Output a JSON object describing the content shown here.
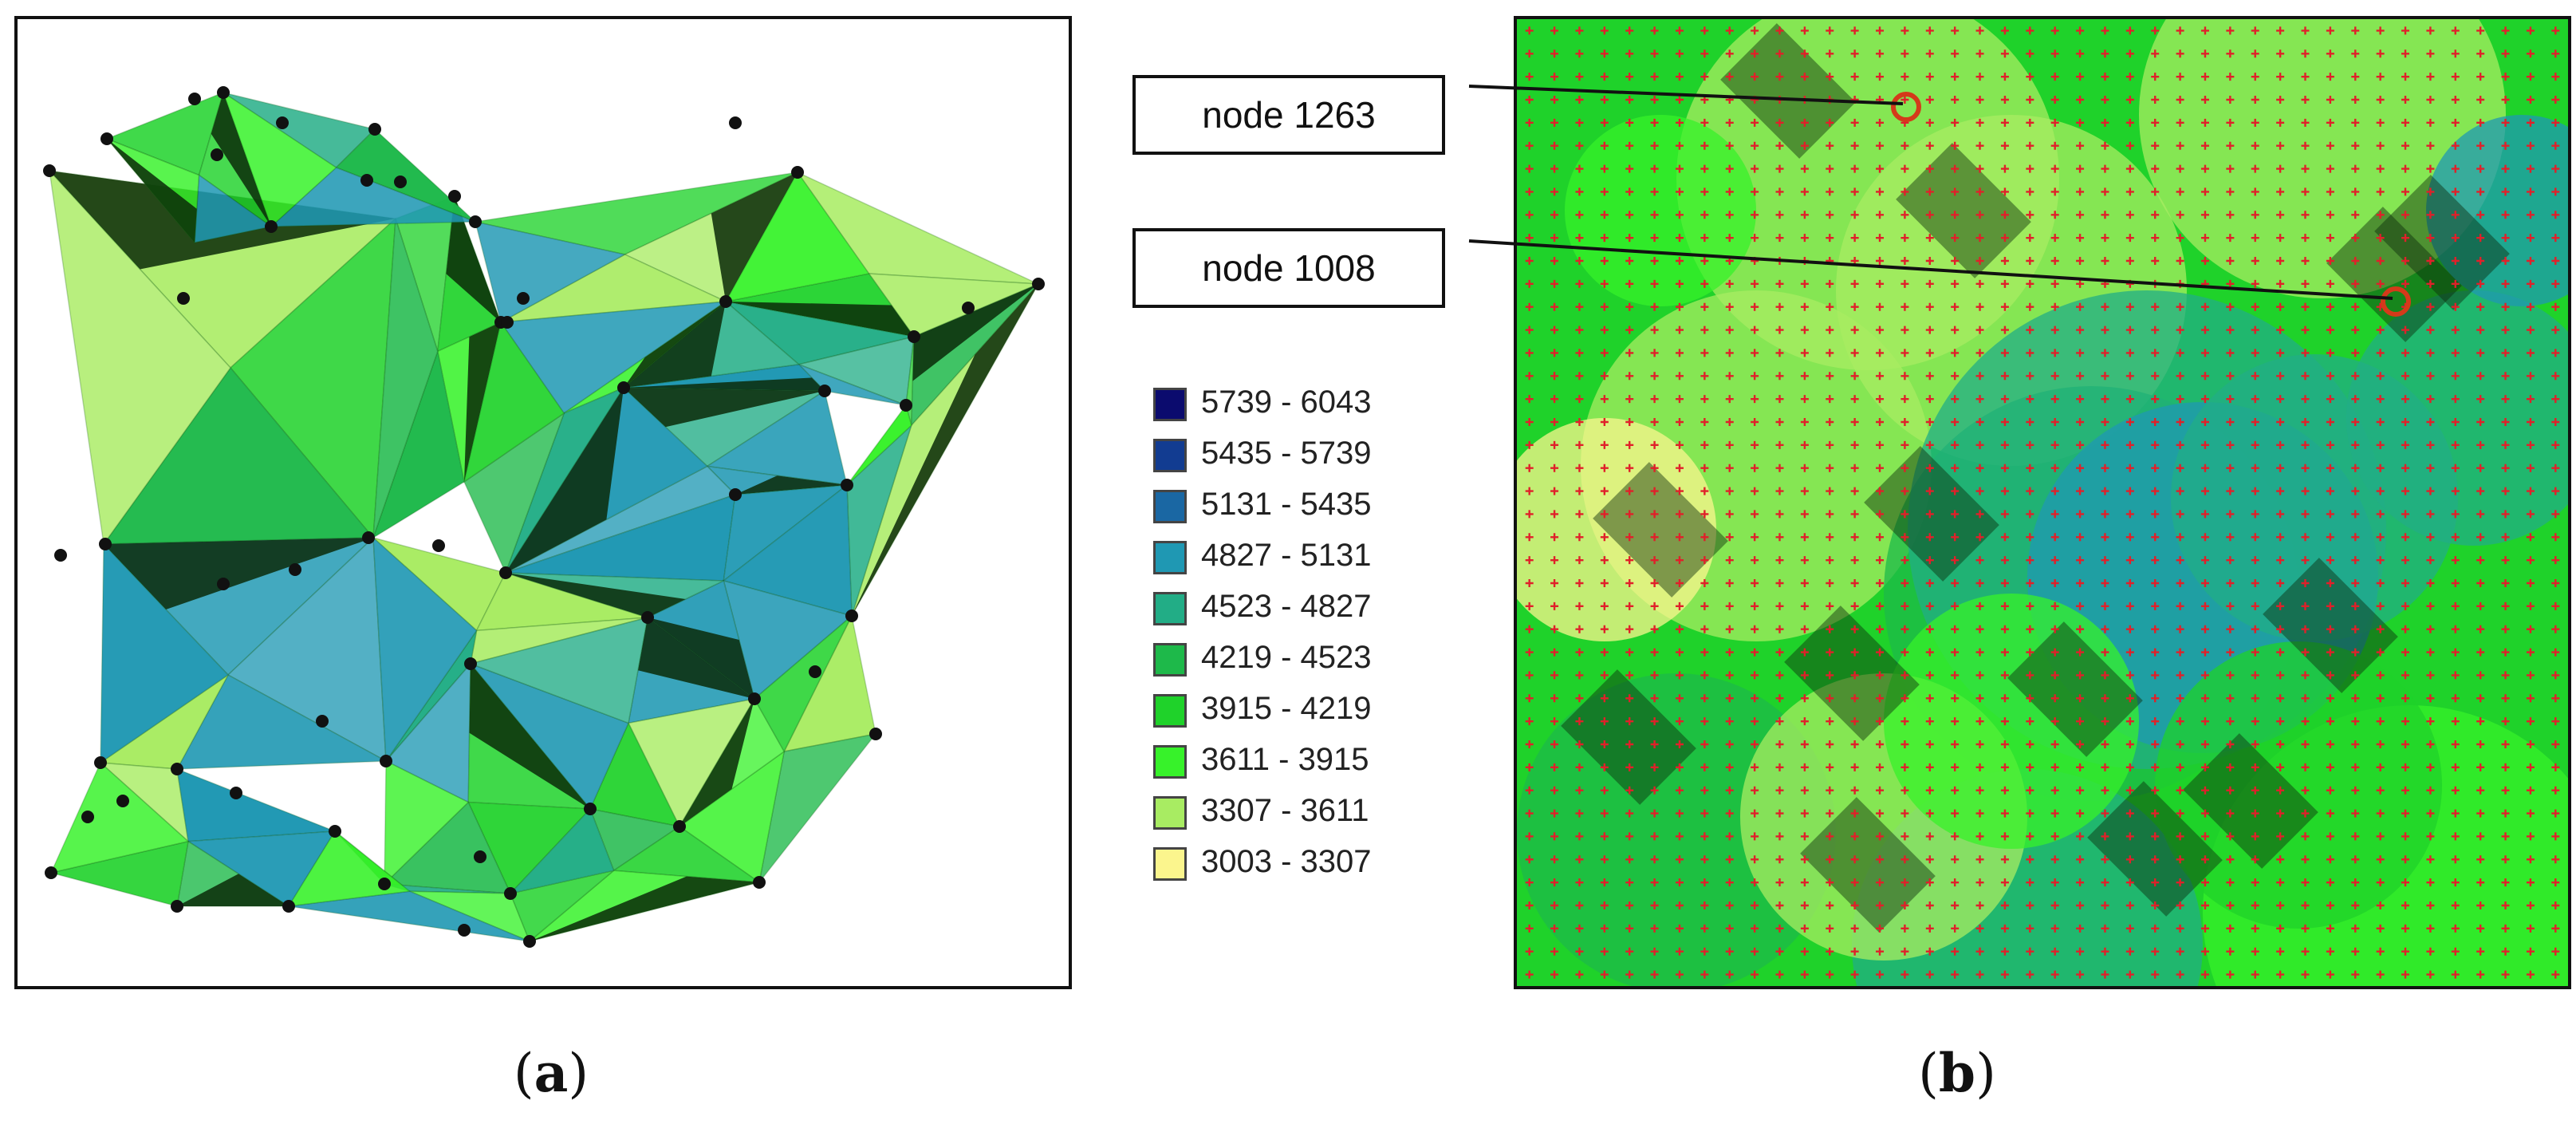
{
  "legend": {
    "items": [
      {
        "label": "5739 - 6043",
        "color": "#0b0b6e"
      },
      {
        "label": "5435 - 5739",
        "color": "#123c91"
      },
      {
        "label": "5131 - 5435",
        "color": "#1a67a3"
      },
      {
        "label": "4827 - 5131",
        "color": "#1f98b3"
      },
      {
        "label": "4523 - 4827",
        "color": "#22ad86"
      },
      {
        "label": "4219 - 4523",
        "color": "#1eb94a"
      },
      {
        "label": "3915 - 4219",
        "color": "#1fd22a"
      },
      {
        "label": "3611 - 3915",
        "color": "#37f22a"
      },
      {
        "label": "3307 - 3611",
        "color": "#a8ec62"
      },
      {
        "label": "3003 - 3307",
        "color": "#fbf58d"
      }
    ]
  },
  "callouts": {
    "node_1263": "node 1263",
    "node_1008": "node 1008"
  },
  "sublabels": {
    "a": {
      "open": "(",
      "letter": "a",
      "close": ")"
    },
    "b": {
      "open": "(",
      "letter": "b",
      "close": ")"
    }
  },
  "colors": {
    "grid_marker": "#e0202a",
    "node_marker": "#d43a1a",
    "mesh_point": "#111111"
  }
}
